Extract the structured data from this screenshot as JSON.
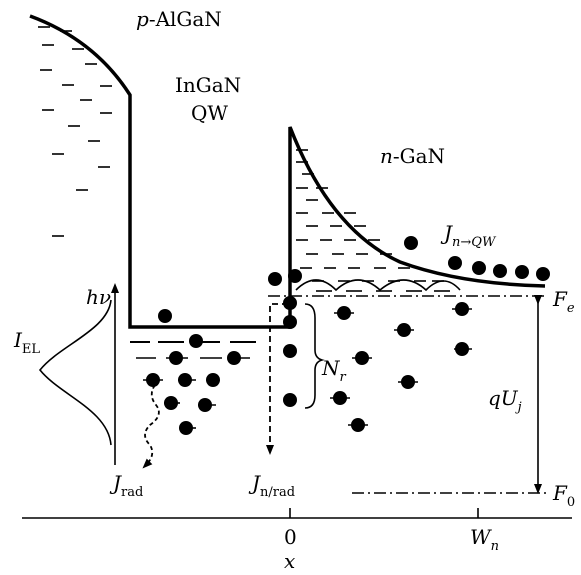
{
  "regions": {
    "p_layer": "p-AlGaN",
    "qw_line1": "InGaN",
    "qw_line2": "QW",
    "n_layer": "n-GaN"
  },
  "labels": {
    "photon": "hν",
    "electroluminescence": "I",
    "electroluminescence_sub": "EL",
    "injection_current": "J",
    "injection_current_sub": "n→QW",
    "radiative_current": "J",
    "radiative_current_sub": "rad",
    "nonradiative_current": "J",
    "nonradiative_current_sub": "n/rad",
    "recombination_centers": "N",
    "recombination_centers_sub": "r",
    "junction_voltage": "qU",
    "junction_voltage_sub": "j",
    "fermi_level_e": "F",
    "fermi_level_e_sub": "e",
    "fermi_level_0": "F",
    "fermi_level_0_sub": "0"
  },
  "axis": {
    "origin": "0",
    "width": "W",
    "width_sub": "n",
    "variable": "x"
  }
}
